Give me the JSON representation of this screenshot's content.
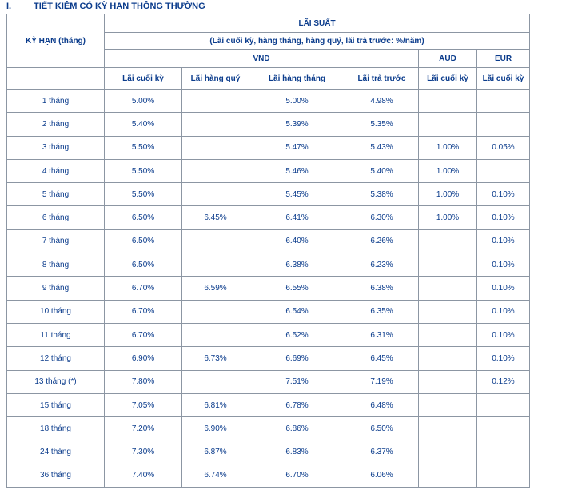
{
  "heading": {
    "number": "I.",
    "title": "TIẾT KIỆM CÓ KỲ HẠN THÔNG THƯỜNG"
  },
  "header": {
    "term_label": "KỲ HẠN (tháng)",
    "rate_label": "LÃI SUẤT",
    "rate_note": "(Lãi cuối kỳ, hàng tháng, hàng quý, lãi trả trước: %/năm)",
    "currencies": {
      "vnd": "VND",
      "aud": "AUD",
      "eur": "EUR"
    },
    "columns": [
      "Lãi cuối kỳ",
      "Lãi hàng quý",
      "Lãi hàng tháng",
      "Lãi trả trước",
      "Lãi cuối kỳ",
      "Lãi cuối kỳ"
    ]
  },
  "rows": [
    [
      "1 tháng",
      "5.00%",
      "",
      "5.00%",
      "4.98%",
      "",
      ""
    ],
    [
      "2 tháng",
      "5.40%",
      "",
      "5.39%",
      "5.35%",
      "",
      ""
    ],
    [
      "3 tháng",
      "5.50%",
      "",
      "5.47%",
      "5.43%",
      "1.00%",
      "0.05%"
    ],
    [
      "4 tháng",
      "5.50%",
      "",
      "5.46%",
      "5.40%",
      "1.00%",
      ""
    ],
    [
      "5 tháng",
      "5.50%",
      "",
      "5.45%",
      "5.38%",
      "1.00%",
      "0.10%"
    ],
    [
      "6 tháng",
      "6.50%",
      "6.45%",
      "6.41%",
      "6.30%",
      "1.00%",
      "0.10%"
    ],
    [
      "7 tháng",
      "6.50%",
      "",
      "6.40%",
      "6.26%",
      "",
      "0.10%"
    ],
    [
      "8 tháng",
      "6.50%",
      "",
      "6.38%",
      "6.23%",
      "",
      "0.10%"
    ],
    [
      "9 tháng",
      "6.70%",
      "6.59%",
      "6.55%",
      "6.38%",
      "",
      "0.10%"
    ],
    [
      "10 tháng",
      "6.70%",
      "",
      "6.54%",
      "6.35%",
      "",
      "0.10%"
    ],
    [
      "11 tháng",
      "6.70%",
      "",
      "6.52%",
      "6.31%",
      "",
      "0.10%"
    ],
    [
      "12 tháng",
      "6.90%",
      "6.73%",
      "6.69%",
      "6.45%",
      "",
      "0.10%"
    ],
    [
      "13 tháng (*)",
      "7.80%",
      "",
      "7.51%",
      "7.19%",
      "",
      "0.12%"
    ],
    [
      "15 tháng",
      "7.05%",
      "6.81%",
      "6.78%",
      "6.48%",
      "",
      ""
    ],
    [
      "18 tháng",
      "7.20%",
      "6.90%",
      "6.86%",
      "6.50%",
      "",
      ""
    ],
    [
      "24 tháng",
      "7.30%",
      "6.87%",
      "6.83%",
      "6.37%",
      "",
      ""
    ],
    [
      "36 tháng",
      "7.40%",
      "6.74%",
      "6.70%",
      "6.06%",
      "",
      ""
    ]
  ]
}
